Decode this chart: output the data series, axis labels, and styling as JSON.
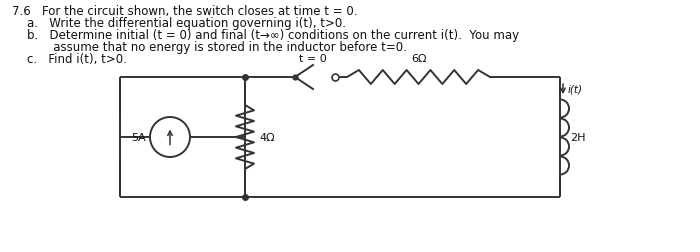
{
  "background_color": "#ffffff",
  "title_text": "7.6   For the circuit shown, the switch closes at time t = 0.",
  "item_a": "    a.   Write the differential equation governing i(t), t>0.",
  "item_b1": "    b.   Determine initial (t = 0) and final (t→∞) conditions on the current i(t).  You may",
  "item_b2": "           assume that no energy is stored in the inductor before t=0.",
  "item_c": "    c.   Find i(t), t>0.",
  "label_switch": "t = 0",
  "label_resistor6": "6Ω",
  "label_current": "i(t)",
  "label_source": "5A",
  "label_resistor4": "4Ω",
  "label_inductor": "2H",
  "wire_color": "#333333",
  "component_color": "#333333",
  "text_color": "#111111",
  "font_size_main": 8.5,
  "font_size_label": 8.0,
  "fig_width": 7.0,
  "fig_height": 2.53
}
